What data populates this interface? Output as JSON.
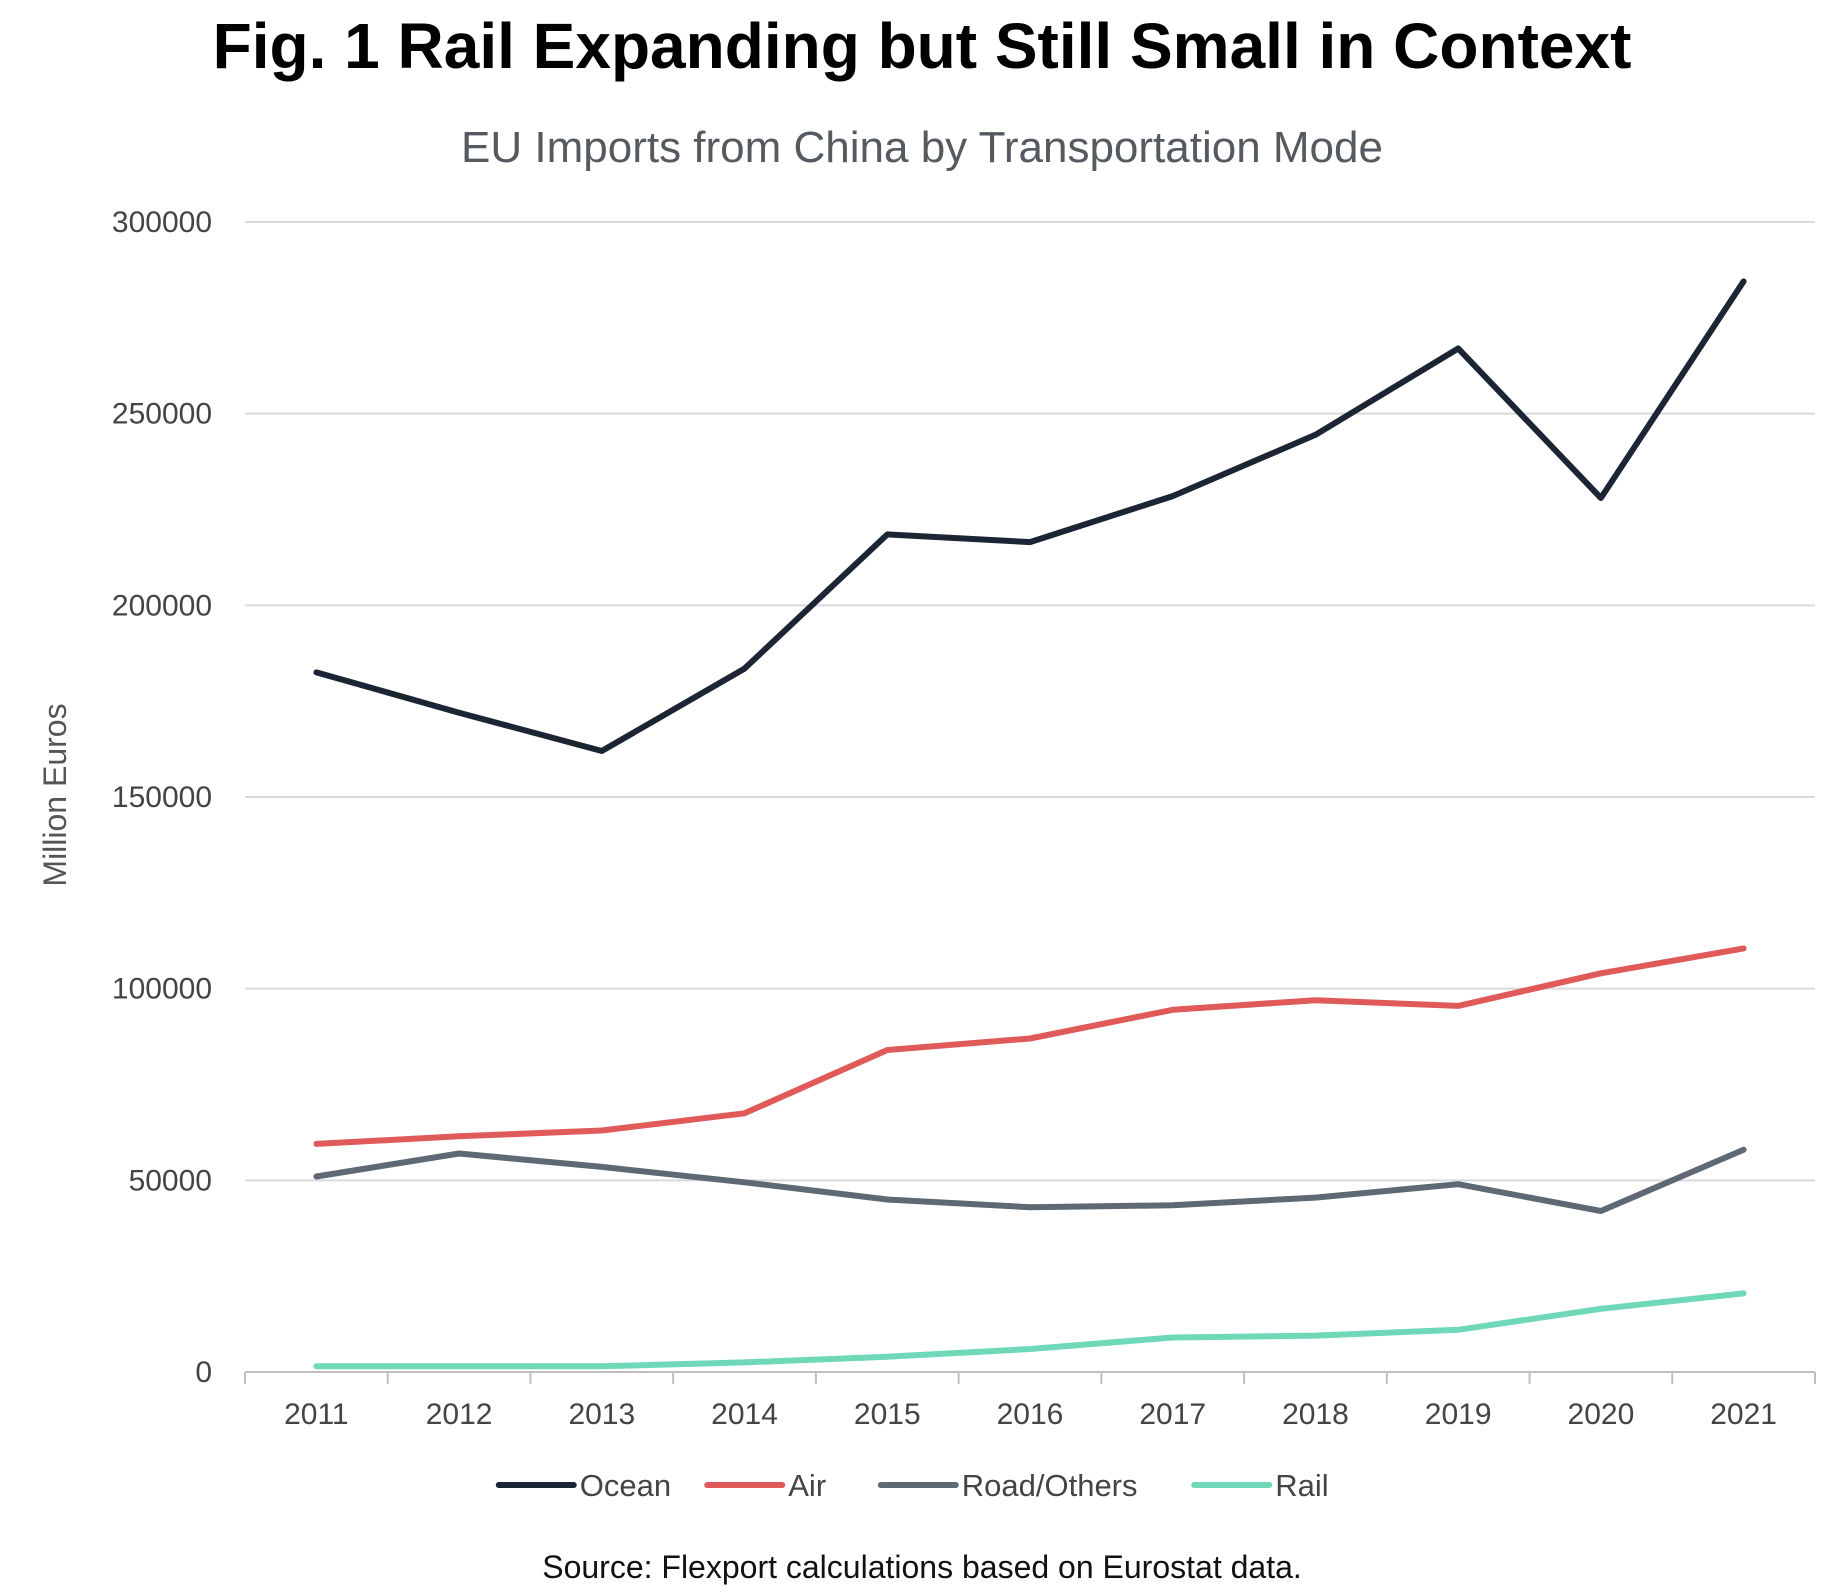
{
  "chart_data": {
    "type": "line",
    "title": "Fig. 1 Rail Expanding but Still Small in Context",
    "subtitle": "EU Imports from China by Transportation Mode",
    "xlabel": "",
    "ylabel": "Million Euros",
    "x": [
      "2011",
      "2012",
      "2013",
      "2014",
      "2015",
      "2016",
      "2017",
      "2018",
      "2019",
      "2020",
      "2021"
    ],
    "ylim": [
      0,
      300000
    ],
    "yticks": [
      "0",
      "50000",
      "100000",
      "150000",
      "200000",
      "250000",
      "300000"
    ],
    "grid": "horizontal",
    "legend_position": "bottom",
    "series": [
      {
        "name": "Ocean",
        "color": "#1c2533",
        "values": [
          182500,
          172000,
          162000,
          183500,
          218500,
          216500,
          228500,
          244500,
          267000,
          228000,
          284500
        ]
      },
      {
        "name": "Air",
        "color": "#e05a5a",
        "values": [
          59500,
          61500,
          63000,
          67500,
          84000,
          87000,
          94500,
          97000,
          95500,
          104000,
          110500
        ]
      },
      {
        "name": "Road/Others",
        "color": "#5f6875",
        "values": [
          51000,
          57000,
          53500,
          49500,
          45000,
          43000,
          43500,
          45500,
          49000,
          42000,
          58000
        ]
      },
      {
        "name": "Rail",
        "color": "#6ed8b8",
        "values": [
          1500,
          1500,
          1500,
          2500,
          4000,
          6000,
          9000,
          9500,
          11000,
          16500,
          20500
        ]
      }
    ],
    "source": "Source: Flexport calculations based on Eurostat data."
  }
}
